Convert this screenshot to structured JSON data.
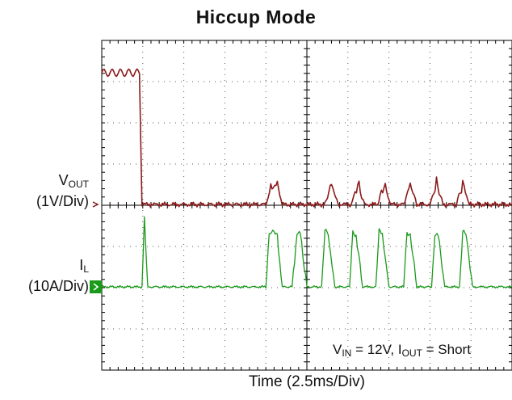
{
  "title": "Hiccup Mode",
  "xlabel": "Time (2.5ms/Div)",
  "channels": {
    "vout": {
      "name_main": "V",
      "name_sub": "OUT",
      "scale": "(1V/Div)",
      "color": "#8b1a1a"
    },
    "il": {
      "name_main": "I",
      "name_sub": "L",
      "scale": "(10A/Div)",
      "color": "#1a9a1a"
    }
  },
  "conditions": {
    "vin_main": "V",
    "vin_sub": "IN",
    "vin_val": " = 12V, ",
    "iout_main": "I",
    "iout_sub": "OUT",
    "iout_val": " = Short"
  },
  "chart_data": {
    "type": "line",
    "title": "Hiccup Mode",
    "xlabel": "Time (2.5ms/Div)",
    "grid": true,
    "xlim": [
      0,
      25
    ],
    "x_unit": "ms",
    "divisions": {
      "x": 10,
      "y": 8
    },
    "series": [
      {
        "name": "VOUT (1V/Div)",
        "x": [
          0,
          2.3,
          2.45,
          5.0,
          10.0,
          10.3,
          10.7,
          11.0,
          13.6,
          14.0,
          14.4,
          15.2,
          15.6,
          16.0,
          16.8,
          17.2,
          17.6,
          18.4,
          18.8,
          19.2,
          20.0,
          20.4,
          20.8,
          21.6,
          22.0,
          22.4,
          25.0
        ],
        "y": [
          3.2,
          3.2,
          0,
          0,
          0,
          0.4,
          0.5,
          0,
          0,
          0.5,
          0,
          0,
          0.5,
          0,
          0,
          0.5,
          0,
          0,
          0.5,
          0,
          0,
          0.5,
          0,
          0,
          0.5,
          0,
          0
        ]
      },
      {
        "name": "IL (10A/Div)",
        "x": [
          0,
          2.45,
          2.6,
          2.8,
          10.0,
          10.2,
          10.5,
          10.7,
          11.0,
          11.6,
          11.9,
          12.1,
          12.5,
          13.4,
          13.6,
          13.8,
          14.2,
          15.1,
          15.3,
          15.5,
          15.9,
          16.7,
          16.9,
          17.1,
          17.5,
          18.4,
          18.6,
          18.8,
          19.2,
          20.1,
          20.3,
          20.5,
          20.9,
          21.8,
          22.0,
          22.2,
          22.6,
          25.0
        ],
        "y": [
          0,
          0,
          3.2,
          0,
          0,
          2.6,
          2.6,
          2.4,
          0,
          0,
          2.6,
          2.5,
          0,
          0,
          2.6,
          2.5,
          0,
          0,
          2.6,
          2.5,
          0,
          0,
          2.6,
          2.5,
          0,
          0,
          2.6,
          2.5,
          0,
          0,
          2.6,
          2.5,
          0,
          0,
          2.6,
          2.5,
          0,
          0
        ]
      }
    ]
  }
}
